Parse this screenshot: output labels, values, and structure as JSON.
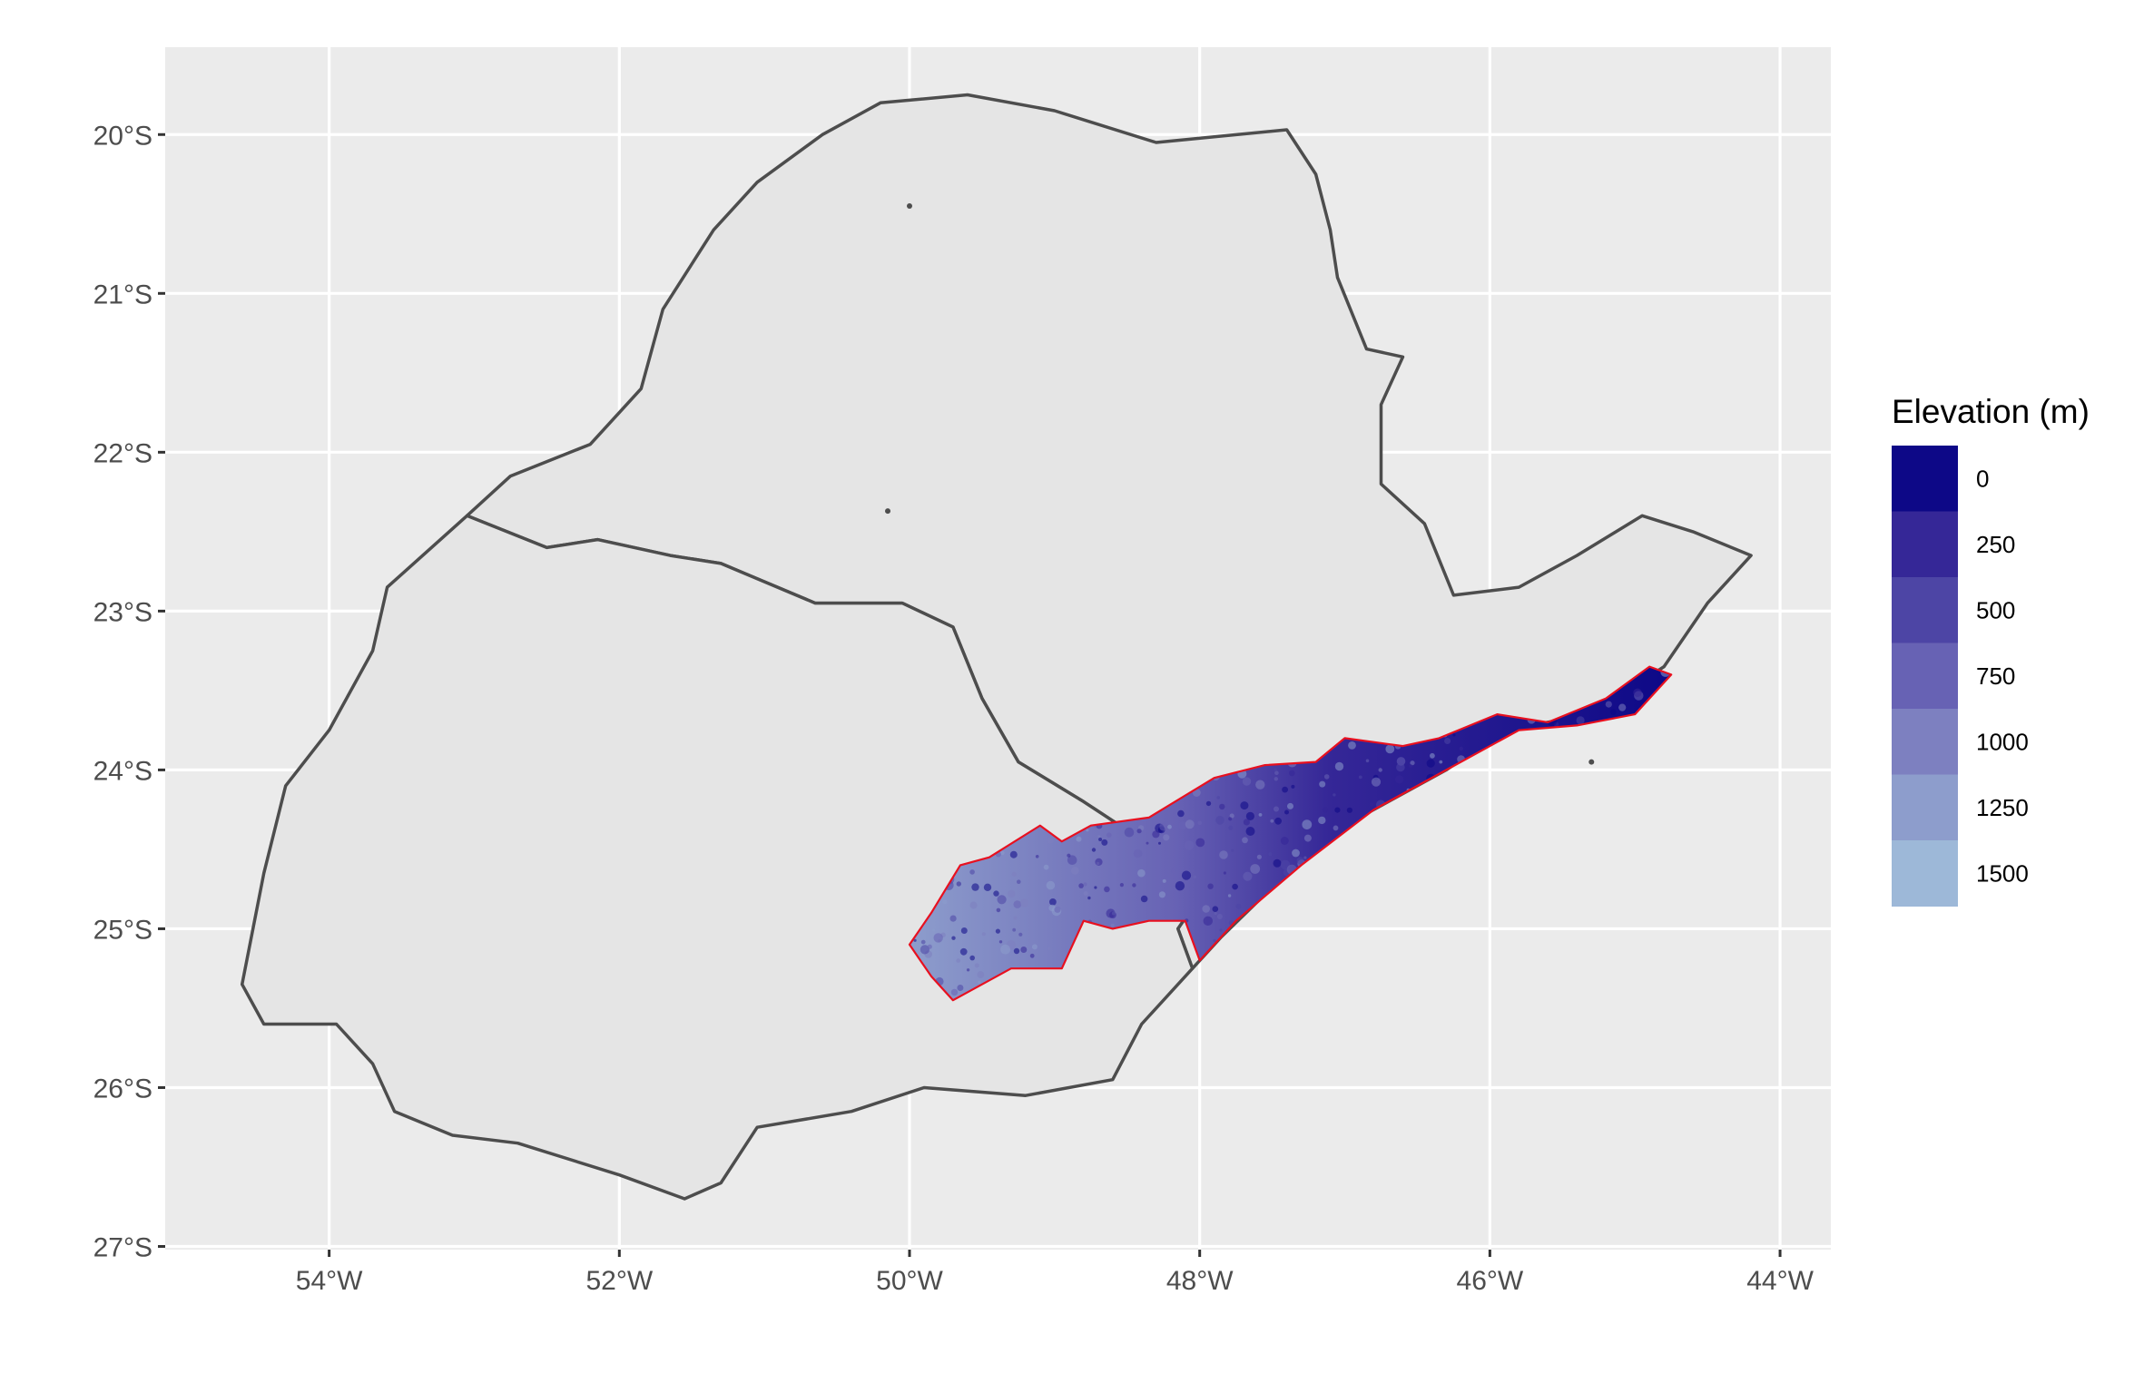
{
  "chart_data": {
    "type": "map",
    "x_axis": {
      "ticks": [
        {
          "value": -54,
          "label": "54°W"
        },
        {
          "value": -52,
          "label": "52°W"
        },
        {
          "value": -50,
          "label": "50°W"
        },
        {
          "value": -48,
          "label": "48°W"
        },
        {
          "value": -46,
          "label": "46°W"
        },
        {
          "value": -44,
          "label": "44°W"
        }
      ],
      "range": [
        -55.13,
        -43.65
      ]
    },
    "y_axis": {
      "ticks": [
        {
          "value": -20,
          "label": "20°S"
        },
        {
          "value": -21,
          "label": "21°S"
        },
        {
          "value": -22,
          "label": "22°S"
        },
        {
          "value": -23,
          "label": "23°S"
        },
        {
          "value": -24,
          "label": "24°S"
        },
        {
          "value": -25,
          "label": "25°S"
        },
        {
          "value": -26,
          "label": "26°S"
        },
        {
          "value": -27,
          "label": "27°S"
        }
      ],
      "range": [
        -27.02,
        -19.45
      ]
    },
    "grid": true,
    "legend": {
      "title": "Elevation (m)",
      "placement": "right",
      "entries": [
        {
          "label": "0",
          "color": "#0d0887"
        },
        {
          "label": "250",
          "color": "#352797"
        },
        {
          "label": "500",
          "color": "#4d45a5"
        },
        {
          "label": "750",
          "color": "#6762b4"
        },
        {
          "label": "1000",
          "color": "#7d80c0"
        },
        {
          "label": "1250",
          "color": "#8d9dcc"
        },
        {
          "label": "1500",
          "color": "#9db8d8"
        }
      ]
    },
    "colors": {
      "panel_background": "#ebebeb",
      "land_fill": "#e5e5e5",
      "state_border": "#4d4d4d",
      "region_outline": "#e8101f",
      "gridline": "#ffffff"
    },
    "boundaries": {
      "sao_paulo": [
        [
          -50.2,
          -19.8
        ],
        [
          -49.6,
          -19.75
        ],
        [
          -49.0,
          -19.85
        ],
        [
          -48.3,
          -20.05
        ],
        [
          -47.4,
          -19.97
        ],
        [
          -47.2,
          -20.25
        ],
        [
          -47.1,
          -20.6
        ],
        [
          -47.05,
          -20.9
        ],
        [
          -46.85,
          -21.35
        ],
        [
          -46.6,
          -21.4
        ],
        [
          -46.75,
          -21.7
        ],
        [
          -46.75,
          -22.2
        ],
        [
          -46.45,
          -22.45
        ],
        [
          -46.25,
          -22.9
        ],
        [
          -45.8,
          -22.85
        ],
        [
          -45.4,
          -22.65
        ],
        [
          -44.95,
          -22.4
        ],
        [
          -44.6,
          -22.5
        ],
        [
          -44.2,
          -22.65
        ],
        [
          -44.5,
          -22.95
        ],
        [
          -44.8,
          -23.35
        ],
        [
          -45.3,
          -23.65
        ],
        [
          -45.9,
          -23.75
        ],
        [
          -46.3,
          -24.0
        ],
        [
          -46.9,
          -24.3
        ],
        [
          -47.4,
          -24.65
        ],
        [
          -47.85,
          -25.05
        ],
        [
          -48.05,
          -25.25
        ],
        [
          -48.15,
          -25.0
        ],
        [
          -48.0,
          -24.8
        ],
        [
          -48.45,
          -24.55
        ],
        [
          -48.55,
          -24.35
        ],
        [
          -48.8,
          -24.2
        ],
        [
          -49.25,
          -23.95
        ],
        [
          -49.5,
          -23.55
        ],
        [
          -49.7,
          -23.1
        ],
        [
          -50.05,
          -22.95
        ],
        [
          -50.65,
          -22.95
        ],
        [
          -51.3,
          -22.7
        ],
        [
          -51.65,
          -22.65
        ],
        [
          -52.15,
          -22.55
        ],
        [
          -52.5,
          -22.6
        ],
        [
          -53.05,
          -22.4
        ],
        [
          -52.75,
          -22.15
        ],
        [
          -52.2,
          -21.95
        ],
        [
          -51.85,
          -21.6
        ],
        [
          -51.7,
          -21.1
        ],
        [
          -51.35,
          -20.6
        ],
        [
          -51.05,
          -20.3
        ],
        [
          -50.6,
          -20.0
        ],
        [
          -50.2,
          -19.8
        ]
      ],
      "parana": [
        [
          -53.05,
          -22.4
        ],
        [
          -52.5,
          -22.6
        ],
        [
          -52.15,
          -22.55
        ],
        [
          -51.65,
          -22.65
        ],
        [
          -51.3,
          -22.7
        ],
        [
          -50.65,
          -22.95
        ],
        [
          -50.05,
          -22.95
        ],
        [
          -49.7,
          -23.1
        ],
        [
          -49.5,
          -23.55
        ],
        [
          -49.25,
          -23.95
        ],
        [
          -48.8,
          -24.2
        ],
        [
          -48.55,
          -24.35
        ],
        [
          -48.45,
          -24.55
        ],
        [
          -48.0,
          -24.8
        ],
        [
          -48.15,
          -25.0
        ],
        [
          -48.05,
          -25.25
        ],
        [
          -48.4,
          -25.6
        ],
        [
          -48.6,
          -25.95
        ],
        [
          -49.2,
          -26.05
        ],
        [
          -49.9,
          -26.0
        ],
        [
          -50.4,
          -26.15
        ],
        [
          -51.05,
          -26.25
        ],
        [
          -51.3,
          -26.6
        ],
        [
          -51.55,
          -26.7
        ],
        [
          -52.0,
          -26.55
        ],
        [
          -52.7,
          -26.35
        ],
        [
          -53.15,
          -26.3
        ],
        [
          -53.55,
          -26.15
        ],
        [
          -53.7,
          -25.85
        ],
        [
          -53.95,
          -25.6
        ],
        [
          -54.45,
          -25.6
        ],
        [
          -54.6,
          -25.35
        ],
        [
          -54.45,
          -24.65
        ],
        [
          -54.3,
          -24.1
        ],
        [
          -54.0,
          -23.75
        ],
        [
          -53.7,
          -23.25
        ],
        [
          -53.6,
          -22.85
        ],
        [
          -53.05,
          -22.4
        ]
      ],
      "highlighted_region": [
        [
          -50.0,
          -25.1
        ],
        [
          -49.85,
          -24.9
        ],
        [
          -49.65,
          -24.6
        ],
        [
          -49.45,
          -24.55
        ],
        [
          -49.1,
          -24.35
        ],
        [
          -48.95,
          -24.45
        ],
        [
          -48.75,
          -24.35
        ],
        [
          -48.35,
          -24.3
        ],
        [
          -47.9,
          -24.05
        ],
        [
          -47.55,
          -23.97
        ],
        [
          -47.2,
          -23.95
        ],
        [
          -47.0,
          -23.8
        ],
        [
          -46.6,
          -23.85
        ],
        [
          -46.35,
          -23.8
        ],
        [
          -45.95,
          -23.65
        ],
        [
          -45.6,
          -23.7
        ],
        [
          -45.2,
          -23.55
        ],
        [
          -44.9,
          -23.35
        ],
        [
          -44.75,
          -23.4
        ],
        [
          -45.0,
          -23.65
        ],
        [
          -45.4,
          -23.72
        ],
        [
          -45.8,
          -23.75
        ],
        [
          -46.2,
          -23.95
        ],
        [
          -46.8,
          -24.25
        ],
        [
          -47.3,
          -24.6
        ],
        [
          -47.75,
          -24.95
        ],
        [
          -48.0,
          -25.2
        ],
        [
          -48.1,
          -24.95
        ],
        [
          -48.35,
          -24.95
        ],
        [
          -48.6,
          -25.0
        ],
        [
          -48.8,
          -24.95
        ],
        [
          -48.95,
          -25.25
        ],
        [
          -49.3,
          -25.25
        ],
        [
          -49.5,
          -25.35
        ],
        [
          -49.7,
          -25.45
        ],
        [
          -49.85,
          -25.3
        ],
        [
          -50.0,
          -25.1
        ]
      ],
      "islets": [
        [
          -50.0,
          -20.45
        ],
        [
          -50.15,
          -22.37
        ],
        [
          -45.3,
          -23.95
        ],
        [
          -44.95,
          -23.55
        ]
      ]
    }
  }
}
